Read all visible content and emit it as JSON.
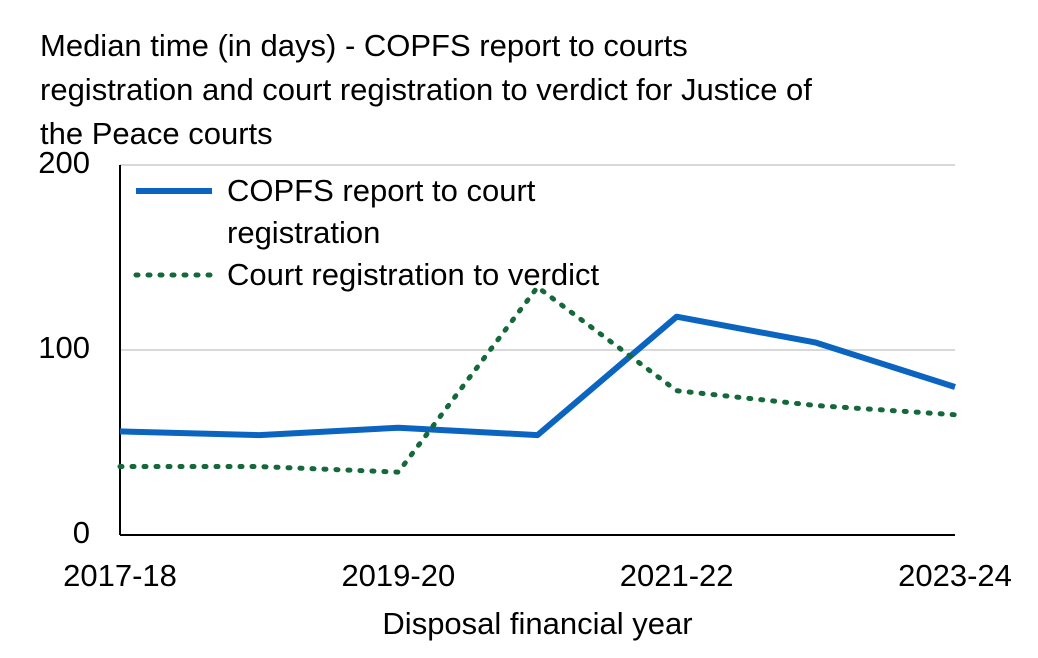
{
  "chart_data": {
    "type": "line",
    "title": "Median time (in days) - COPFS report to courts registration and court registration to verdict for Justice of the Peace courts",
    "x_label": "Disposal financial year",
    "categories": [
      "2017-18",
      null,
      "2019-20",
      null,
      "2021-22",
      null,
      "2023-24"
    ],
    "series": [
      {
        "name": "COPFS report to court registration",
        "color": "#0b64c0",
        "style": "solid",
        "values": [
          56,
          54,
          58,
          54,
          118,
          104,
          80
        ]
      },
      {
        "name": "Court registration to verdict",
        "color": "#14683a",
        "style": "dotted",
        "values": [
          37,
          37,
          34,
          134,
          78,
          70,
          65
        ]
      }
    ],
    "ylim": [
      0,
      200
    ],
    "yticks": [
      0,
      100,
      200
    ],
    "grid": true,
    "legend": "upper left"
  }
}
